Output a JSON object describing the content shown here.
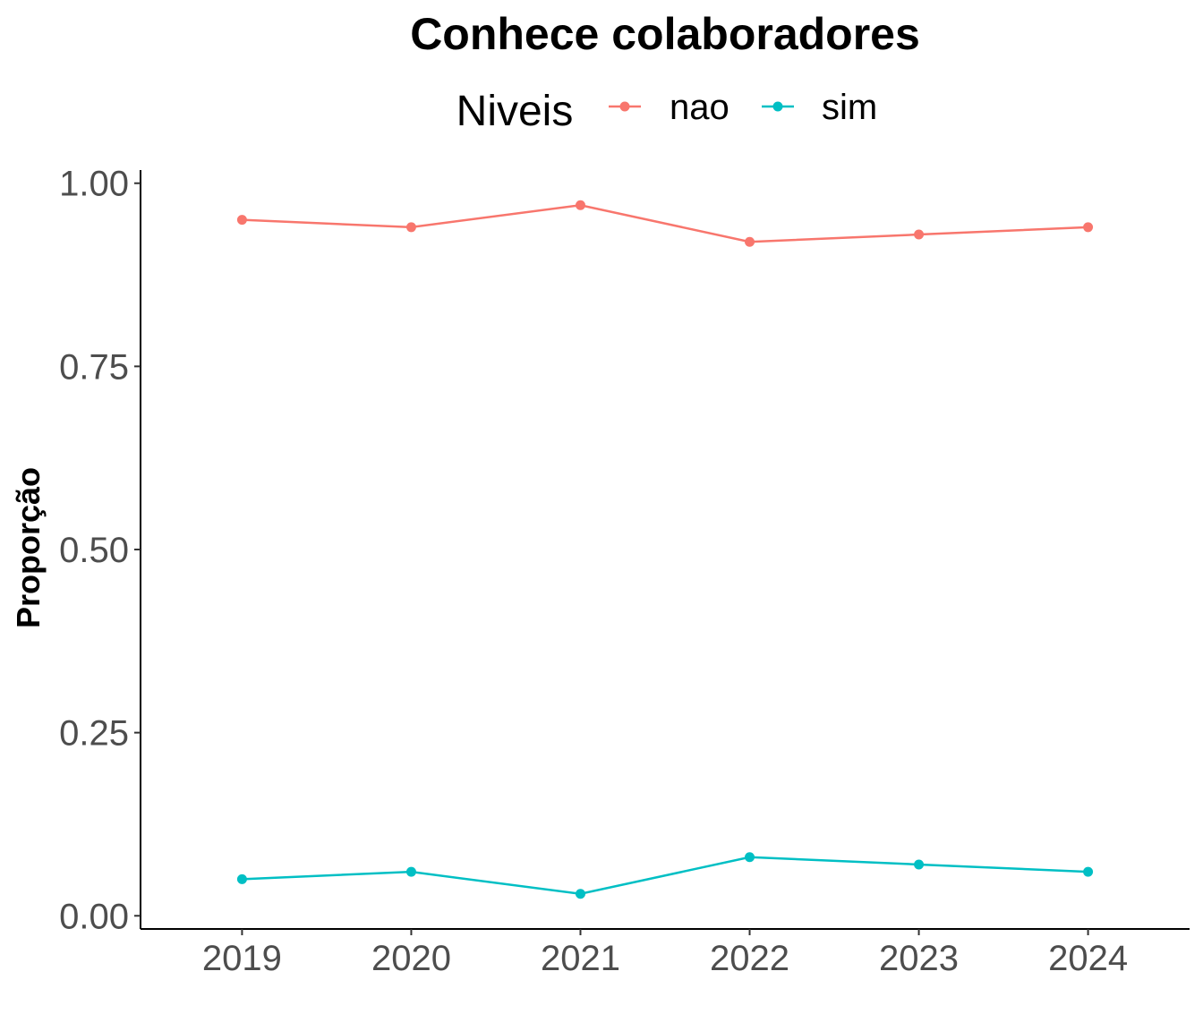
{
  "chart_data": {
    "type": "line",
    "title": "Conhece colaboradores",
    "xlabel": "",
    "ylabel": "Proporção",
    "legend_title": "Niveis",
    "legend_position": "top",
    "x": [
      "2019",
      "2020",
      "2021",
      "2022",
      "2023",
      "2024"
    ],
    "series": [
      {
        "name": "nao",
        "color": "#F8766D",
        "values": [
          0.95,
          0.94,
          0.97,
          0.92,
          0.93,
          0.94
        ]
      },
      {
        "name": "sim",
        "color": "#00BFC4",
        "values": [
          0.05,
          0.06,
          0.03,
          0.08,
          0.07,
          0.06
        ]
      }
    ],
    "ylim": [
      -0.018,
      1.018
    ],
    "yticks": [
      0.0,
      0.25,
      0.5,
      0.75,
      1.0
    ],
    "ytick_labels": [
      "0.00",
      "0.25",
      "0.50",
      "0.75",
      "1.00"
    ],
    "grid": false
  }
}
